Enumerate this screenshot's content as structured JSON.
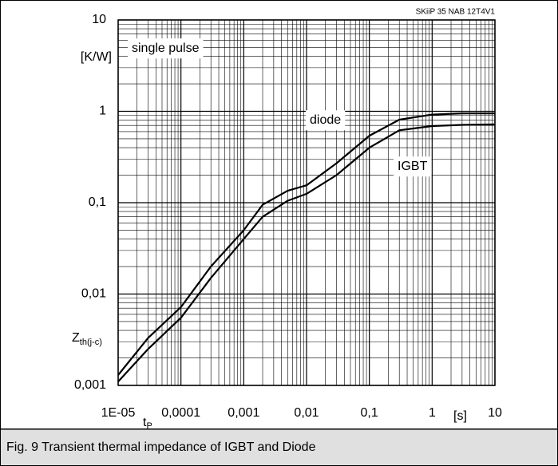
{
  "chart_data": {
    "type": "line",
    "header": "SKiiP 35 NAB 12T4V1",
    "caption": "Fig. 9 Transient thermal impedance of IGBT and Diode",
    "y_unit": "[K/W]",
    "y_label": "Z",
    "y_label_sub": "th(j-c)",
    "x_label": "t",
    "x_label_sub": "P",
    "x_unit": "[s]",
    "annotations": [
      "single pulse",
      "diode",
      "IGBT"
    ],
    "x": [
      1e-05,
      3e-05,
      0.0001,
      0.0003,
      0.001,
      0.002,
      0.005,
      0.01,
      0.03,
      0.1,
      0.3,
      1,
      3,
      10
    ],
    "series": [
      {
        "name": "diode",
        "color": "#000000",
        "values": [
          0.0013,
          0.0033,
          0.0072,
          0.02,
          0.05,
          0.095,
          0.135,
          0.155,
          0.27,
          0.54,
          0.81,
          0.92,
          0.95,
          0.95
        ]
      },
      {
        "name": "IGBT",
        "color": "#000000",
        "values": [
          0.0011,
          0.0025,
          0.0055,
          0.015,
          0.04,
          0.07,
          0.105,
          0.125,
          0.2,
          0.4,
          0.62,
          0.69,
          0.71,
          0.72
        ]
      }
    ],
    "xlog": true,
    "ylog": true,
    "grid": true,
    "xlim": [
      1e-05,
      10
    ],
    "ylim": [
      0.001,
      10
    ],
    "xticks": [
      {
        "value": 1e-05,
        "label": "1E-05"
      },
      {
        "value": 0.0001,
        "label": "0,0001"
      },
      {
        "value": 0.001,
        "label": "0,001"
      },
      {
        "value": 0.01,
        "label": "0,01"
      },
      {
        "value": 0.1,
        "label": "0,1"
      },
      1,
      10
    ],
    "yticks": [
      {
        "value": 0.001,
        "label": "0,001"
      },
      {
        "value": 0.01,
        "label": "0,01"
      },
      {
        "value": 0.1,
        "label": "0,1"
      },
      1,
      10
    ]
  }
}
